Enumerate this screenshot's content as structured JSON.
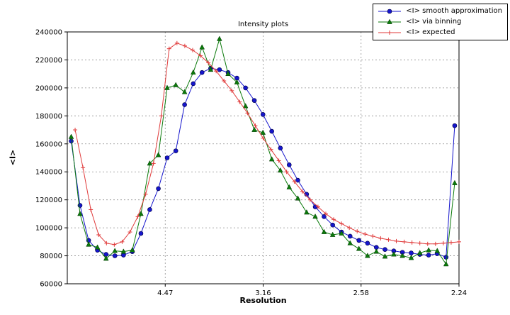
{
  "chart_data": {
    "type": "line",
    "title": "Intensity plots",
    "xlabel": "Resolution",
    "ylabel": "<I>",
    "xlim": [
      0,
      0.2
    ],
    "ylim": [
      60000,
      240000
    ],
    "ytick_step": 20000,
    "grid": true,
    "legend_position": "upper right",
    "xticks": [
      {
        "pos": 0.05,
        "label": "4.47"
      },
      {
        "pos": 0.1,
        "label": "3.16"
      },
      {
        "pos": 0.15,
        "label": "2.58"
      },
      {
        "pos": 0.2,
        "label": "2.24"
      }
    ],
    "series": [
      {
        "name": "<I> smooth approximation",
        "color": "#1515cc",
        "marker": "circle",
        "x": [
          0.002,
          0.0065,
          0.0109,
          0.0154,
          0.0198,
          0.0243,
          0.0287,
          0.0332,
          0.0376,
          0.0421,
          0.0465,
          0.051,
          0.0554,
          0.0599,
          0.0643,
          0.0688,
          0.0732,
          0.0777,
          0.0821,
          0.0866,
          0.091,
          0.0955,
          0.0999,
          0.1044,
          0.1088,
          0.1133,
          0.1177,
          0.1222,
          0.1266,
          0.1311,
          0.1355,
          0.14,
          0.1444,
          0.1489,
          0.1533,
          0.1578,
          0.1622,
          0.1667,
          0.1711,
          0.1756,
          0.18,
          0.1845,
          0.1889,
          0.1934,
          0.1978
        ],
        "y": [
          162000,
          116000,
          91000,
          84000,
          81000,
          80000,
          80500,
          83000,
          96000,
          113000,
          128000,
          150000,
          155000,
          188000,
          203000,
          211000,
          214000,
          213000,
          211000,
          207000,
          200000,
          191000,
          181000,
          169000,
          157000,
          145000,
          134000,
          124000,
          115000,
          108000,
          102000,
          97000,
          94000,
          91000,
          89000,
          86000,
          84500,
          83500,
          82500,
          82000,
          81000,
          80500,
          81500,
          79000,
          173000
        ]
      },
      {
        "name": "<I> via binning",
        "color": "#0b7a0b",
        "marker": "triangle-up",
        "x": [
          0.002,
          0.0065,
          0.0109,
          0.0154,
          0.0198,
          0.0243,
          0.0287,
          0.0332,
          0.0376,
          0.0421,
          0.0465,
          0.051,
          0.0554,
          0.0599,
          0.0643,
          0.0688,
          0.0732,
          0.0777,
          0.0821,
          0.0866,
          0.091,
          0.0955,
          0.0999,
          0.1044,
          0.1088,
          0.1133,
          0.1177,
          0.1222,
          0.1266,
          0.1311,
          0.1355,
          0.14,
          0.1444,
          0.1489,
          0.1533,
          0.1578,
          0.1622,
          0.1667,
          0.1711,
          0.1756,
          0.18,
          0.1845,
          0.1889,
          0.1934,
          0.1978
        ],
        "y": [
          165000,
          110000,
          88000,
          86000,
          78000,
          83500,
          83000,
          84000,
          110000,
          146000,
          152000,
          200000,
          202000,
          197000,
          211000,
          229000,
          213000,
          235000,
          210000,
          204000,
          187000,
          170000,
          168000,
          149000,
          141000,
          129000,
          121000,
          111000,
          108000,
          97000,
          95000,
          96000,
          89000,
          85000,
          80000,
          83000,
          79500,
          81000,
          80000,
          78500,
          82000,
          84000,
          83500,
          74000,
          132000
        ]
      },
      {
        "name": "<I> expected",
        "color": "#e03a3a",
        "marker": "plus",
        "x": [
          0.004,
          0.008,
          0.012,
          0.016,
          0.02,
          0.024,
          0.028,
          0.032,
          0.036,
          0.04,
          0.044,
          0.048,
          0.052,
          0.056,
          0.06,
          0.064,
          0.068,
          0.072,
          0.076,
          0.08,
          0.084,
          0.088,
          0.092,
          0.096,
          0.1,
          0.104,
          0.108,
          0.112,
          0.116,
          0.12,
          0.124,
          0.128,
          0.132,
          0.136,
          0.14,
          0.144,
          0.148,
          0.152,
          0.156,
          0.16,
          0.164,
          0.168,
          0.172,
          0.176,
          0.18,
          0.184,
          0.188,
          0.192,
          0.196,
          0.2
        ],
        "y": [
          170000,
          143000,
          113000,
          95000,
          89000,
          88000,
          90000,
          97000,
          108000,
          124000,
          146000,
          180000,
          228000,
          232000,
          230000,
          227000,
          223000,
          218000,
          212000,
          205000,
          198000,
          190000,
          182000,
          173000,
          164000,
          156000,
          148000,
          140000,
          133000,
          126000,
          120000,
          115000,
          110000,
          106000,
          103000,
          100000,
          97500,
          95500,
          94000,
          92500,
          91500,
          90500,
          90000,
          89500,
          89000,
          88500,
          88500,
          89000,
          89500,
          90000
        ]
      }
    ]
  }
}
